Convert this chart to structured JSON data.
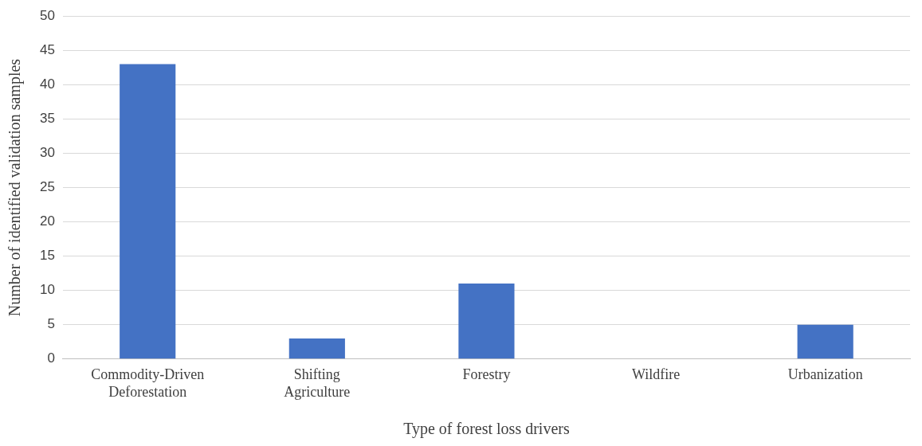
{
  "chart_data": {
    "type": "bar",
    "xlabel": "Type of forest loss drivers",
    "ylabel": "Number of identified validation samples",
    "categories": [
      "Commodity-Driven Deforestation",
      "Shifting Agriculture",
      "Forestry",
      "Wildfire",
      "Urbanization"
    ],
    "values": [
      43,
      3,
      11,
      0,
      5
    ],
    "color": "#4472c4",
    "ylim": [
      0,
      50
    ],
    "yticks": [
      0,
      5,
      10,
      15,
      20,
      25,
      30,
      35,
      40,
      45,
      50
    ],
    "grid": "y",
    "legend": false
  }
}
